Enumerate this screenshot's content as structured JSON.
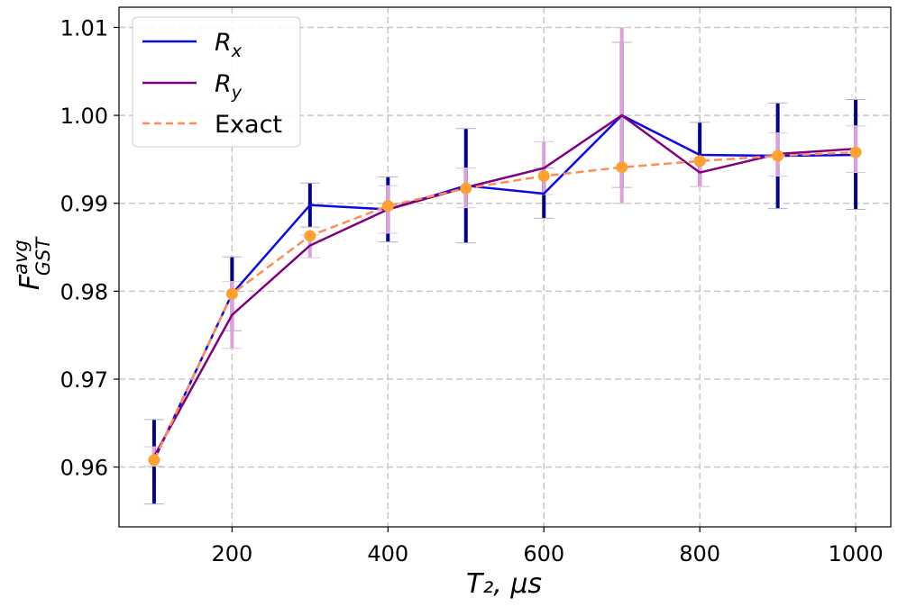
{
  "chart_data": {
    "type": "line",
    "xlabel": "T₂, μs",
    "ylabel": {
      "main": "F",
      "sup": "avg",
      "sub": "GST"
    },
    "xlim": [
      55,
      1045
    ],
    "ylim": [
      0.9532,
      1.0123
    ],
    "xticks": [
      200,
      400,
      600,
      800,
      1000
    ],
    "yticks": [
      0.96,
      0.97,
      0.98,
      0.99,
      1.0,
      1.01
    ],
    "ytick_labels": [
      "0.96",
      "0.97",
      "0.98",
      "0.99",
      "1.00",
      "1.01"
    ],
    "grid": true,
    "legend_position": "top-left",
    "x": [
      100,
      200,
      300,
      400,
      500,
      600,
      700,
      800,
      900,
      1000
    ],
    "series": [
      {
        "name": "R_x",
        "label_main": "R",
        "label_sub": "x",
        "color": "#0a0ae6",
        "line_style": "solid",
        "values": [
          0.9608,
          0.9797,
          0.9898,
          0.9893,
          0.992,
          0.9911,
          1.0,
          0.9955,
          0.9954,
          0.9955
        ],
        "err_low": [
          0.9558,
          0.9755,
          0.9873,
          0.9856,
          0.9855,
          0.9883,
          0.9918,
          0.9919,
          0.9894,
          0.9893
        ],
        "err_high": [
          0.9654,
          0.9839,
          0.9923,
          0.993,
          0.9985,
          0.994,
          1.0083,
          0.9992,
          1.0014,
          1.0018
        ],
        "err_color": "#00008b"
      },
      {
        "name": "R_y",
        "label_main": "R",
        "label_sub": "y",
        "color": "#800080",
        "line_style": "solid",
        "values": [
          0.9612,
          0.9773,
          0.9852,
          0.9893,
          0.9918,
          0.994,
          1.0,
          0.9935,
          0.9956,
          0.9962
        ],
        "err_low": [
          0.9601,
          0.9735,
          0.9838,
          0.9866,
          0.9895,
          0.991,
          0.99,
          0.9919,
          0.9931,
          0.9935
        ],
        "err_high": [
          0.9623,
          0.9811,
          0.9864,
          0.992,
          0.994,
          0.997,
          1.01,
          0.9951,
          0.998,
          0.9988
        ],
        "err_color": "#dda0dd"
      },
      {
        "name": "Exact",
        "label_main": "Exact",
        "label_sub": "",
        "color": "#ff8c55",
        "line_style": "dashed",
        "marker_color": "#ffa033",
        "values": [
          0.9608,
          0.9797,
          0.9863,
          0.9897,
          0.9917,
          0.9931,
          0.9941,
          0.9948,
          0.9954,
          0.9958
        ]
      }
    ]
  }
}
